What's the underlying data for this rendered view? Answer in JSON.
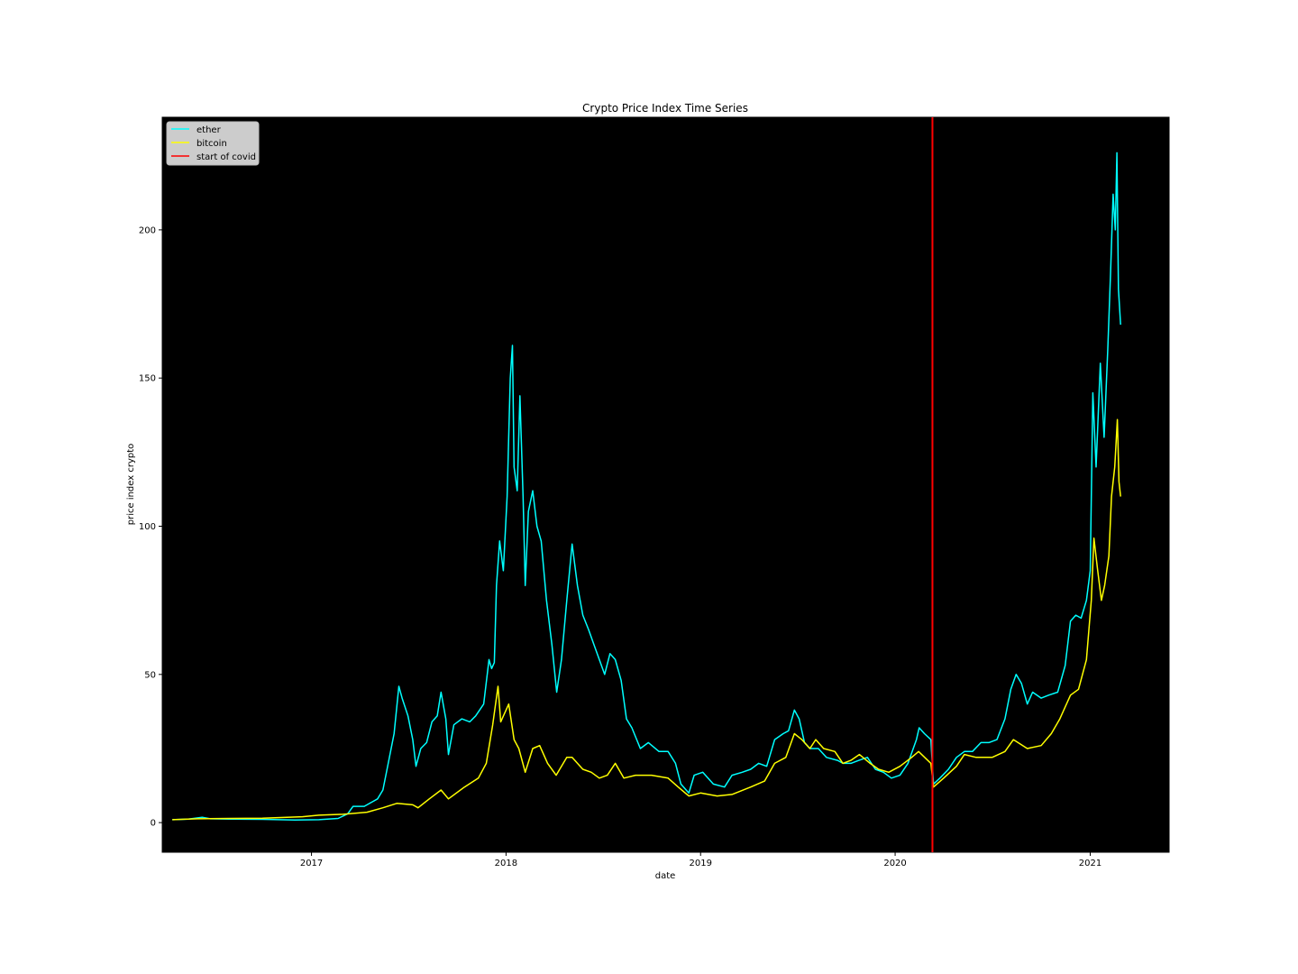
{
  "chart_data": {
    "type": "line",
    "title": "Crypto Price Index Time Series",
    "xlabel": "date",
    "ylabel": "price index crypto",
    "xlim": [
      "2016-03-27",
      "2021-05-29"
    ],
    "ylim": [
      -10,
      238
    ],
    "x_ticks": [
      {
        "date": "2017-01-01",
        "label": "2017"
      },
      {
        "date": "2018-01-01",
        "label": "2018"
      },
      {
        "date": "2019-01-01",
        "label": "2019"
      },
      {
        "date": "2020-01-01",
        "label": "2020"
      },
      {
        "date": "2021-01-01",
        "label": "2021"
      }
    ],
    "y_ticks": [
      0,
      50,
      100,
      150,
      200
    ],
    "background_color": "#000000",
    "legend_placement": "top-left",
    "series": [
      {
        "name": "ether",
        "color": "#00ffff",
        "points": [
          [
            "2016-04-15",
            1.0
          ],
          [
            "2016-05-15",
            1.2
          ],
          [
            "2016-06-10",
            1.8
          ],
          [
            "2016-06-25",
            1.3
          ],
          [
            "2016-08-01",
            1.2
          ],
          [
            "2016-10-01",
            1.1
          ],
          [
            "2016-12-01",
            0.9
          ],
          [
            "2017-01-15",
            1.0
          ],
          [
            "2017-02-20",
            1.4
          ],
          [
            "2017-03-10",
            3.0
          ],
          [
            "2017-03-20",
            5.5
          ],
          [
            "2017-04-10",
            5.5
          ],
          [
            "2017-04-25",
            7.0
          ],
          [
            "2017-05-05",
            8.0
          ],
          [
            "2017-05-15",
            11.0
          ],
          [
            "2017-05-25",
            20.0
          ],
          [
            "2017-06-05",
            30.0
          ],
          [
            "2017-06-14",
            46.0
          ],
          [
            "2017-06-20",
            42.0
          ],
          [
            "2017-07-01",
            36.0
          ],
          [
            "2017-07-10",
            28.0
          ],
          [
            "2017-07-16",
            19.0
          ],
          [
            "2017-07-25",
            25.0
          ],
          [
            "2017-08-05",
            27.0
          ],
          [
            "2017-08-15",
            34.0
          ],
          [
            "2017-08-25",
            36.0
          ],
          [
            "2017-09-01",
            44.0
          ],
          [
            "2017-09-10",
            35.0
          ],
          [
            "2017-09-15",
            23.0
          ],
          [
            "2017-09-25",
            33.0
          ],
          [
            "2017-10-10",
            35.0
          ],
          [
            "2017-10-25",
            34.0
          ],
          [
            "2017-11-05",
            36.0
          ],
          [
            "2017-11-20",
            40.0
          ],
          [
            "2017-11-30",
            55.0
          ],
          [
            "2017-12-05",
            52.0
          ],
          [
            "2017-12-10",
            54.0
          ],
          [
            "2017-12-14",
            80.0
          ],
          [
            "2017-12-20",
            95.0
          ],
          [
            "2017-12-27",
            85.0
          ],
          [
            "2018-01-03",
            110.0
          ],
          [
            "2018-01-09",
            150.0
          ],
          [
            "2018-01-13",
            161.0
          ],
          [
            "2018-01-16",
            120.0
          ],
          [
            "2018-01-22",
            112.0
          ],
          [
            "2018-01-27",
            144.0
          ],
          [
            "2018-02-02",
            110.0
          ],
          [
            "2018-02-06",
            80.0
          ],
          [
            "2018-02-12",
            105.0
          ],
          [
            "2018-02-20",
            112.0
          ],
          [
            "2018-02-28",
            100.0
          ],
          [
            "2018-03-08",
            95.0
          ],
          [
            "2018-03-18",
            75.0
          ],
          [
            "2018-03-28",
            60.0
          ],
          [
            "2018-04-06",
            44.0
          ],
          [
            "2018-04-15",
            55.0
          ],
          [
            "2018-04-25",
            75.0
          ],
          [
            "2018-05-05",
            94.0
          ],
          [
            "2018-05-15",
            80.0
          ],
          [
            "2018-05-25",
            70.0
          ],
          [
            "2018-06-05",
            65.0
          ],
          [
            "2018-06-15",
            60.0
          ],
          [
            "2018-06-25",
            55.0
          ],
          [
            "2018-07-05",
            50.0
          ],
          [
            "2018-07-15",
            57.0
          ],
          [
            "2018-07-25",
            55.0
          ],
          [
            "2018-08-05",
            48.0
          ],
          [
            "2018-08-15",
            35.0
          ],
          [
            "2018-08-25",
            32.0
          ],
          [
            "2018-09-10",
            25.0
          ],
          [
            "2018-09-25",
            27.0
          ],
          [
            "2018-10-15",
            24.0
          ],
          [
            "2018-11-01",
            24.0
          ],
          [
            "2018-11-15",
            20.0
          ],
          [
            "2018-11-25",
            13.0
          ],
          [
            "2018-12-10",
            10.0
          ],
          [
            "2018-12-20",
            16.0
          ],
          [
            "2019-01-05",
            17.0
          ],
          [
            "2019-01-25",
            13.0
          ],
          [
            "2019-02-15",
            12.0
          ],
          [
            "2019-03-01",
            16.0
          ],
          [
            "2019-03-20",
            17.0
          ],
          [
            "2019-04-05",
            18.0
          ],
          [
            "2019-04-20",
            20.0
          ],
          [
            "2019-05-05",
            19.0
          ],
          [
            "2019-05-20",
            28.0
          ],
          [
            "2019-06-05",
            30.0
          ],
          [
            "2019-06-15",
            31.0
          ],
          [
            "2019-06-26",
            38.0
          ],
          [
            "2019-07-05",
            35.0
          ],
          [
            "2019-07-15",
            27.0
          ],
          [
            "2019-07-25",
            25.0
          ],
          [
            "2019-08-10",
            25.0
          ],
          [
            "2019-08-25",
            22.0
          ],
          [
            "2019-09-15",
            21.0
          ],
          [
            "2019-09-25",
            20.0
          ],
          [
            "2019-10-10",
            20.0
          ],
          [
            "2019-10-25",
            21.0
          ],
          [
            "2019-11-10",
            22.0
          ],
          [
            "2019-11-25",
            18.0
          ],
          [
            "2019-12-10",
            17.0
          ],
          [
            "2019-12-25",
            15.0
          ],
          [
            "2020-01-10",
            16.0
          ],
          [
            "2020-01-25",
            20.0
          ],
          [
            "2020-02-10",
            28.0
          ],
          [
            "2020-02-15",
            32.0
          ],
          [
            "2020-02-25",
            30.0
          ],
          [
            "2020-03-08",
            28.0
          ],
          [
            "2020-03-13",
            13.0
          ],
          [
            "2020-03-25",
            15.0
          ],
          [
            "2020-04-10",
            18.0
          ],
          [
            "2020-04-25",
            22.0
          ],
          [
            "2020-05-10",
            24.0
          ],
          [
            "2020-05-25",
            24.0
          ],
          [
            "2020-06-10",
            27.0
          ],
          [
            "2020-06-25",
            27.0
          ],
          [
            "2020-07-10",
            28.0
          ],
          [
            "2020-07-25",
            35.0
          ],
          [
            "2020-08-05",
            45.0
          ],
          [
            "2020-08-15",
            50.0
          ],
          [
            "2020-08-25",
            47.0
          ],
          [
            "2020-09-05",
            40.0
          ],
          [
            "2020-09-15",
            44.0
          ],
          [
            "2020-10-01",
            42.0
          ],
          [
            "2020-10-15",
            43.0
          ],
          [
            "2020-11-01",
            44.0
          ],
          [
            "2020-11-15",
            53.0
          ],
          [
            "2020-11-25",
            68.0
          ],
          [
            "2020-12-05",
            70.0
          ],
          [
            "2020-12-15",
            69.0
          ],
          [
            "2020-12-25",
            75.0
          ],
          [
            "2021-01-01",
            85.0
          ],
          [
            "2021-01-06",
            145.0
          ],
          [
            "2021-01-12",
            120.0
          ],
          [
            "2021-01-20",
            155.0
          ],
          [
            "2021-01-27",
            130.0
          ],
          [
            "2021-02-03",
            160.0
          ],
          [
            "2021-02-08",
            185.0
          ],
          [
            "2021-02-13",
            212.0
          ],
          [
            "2021-02-17",
            200.0
          ],
          [
            "2021-02-20",
            226.0
          ],
          [
            "2021-02-23",
            180.0
          ],
          [
            "2021-02-27",
            168.0
          ]
        ]
      },
      {
        "name": "bitcoin",
        "color": "#ffff00",
        "points": [
          [
            "2016-04-15",
            1.0
          ],
          [
            "2016-06-01",
            1.3
          ],
          [
            "2016-08-01",
            1.4
          ],
          [
            "2016-10-01",
            1.5
          ],
          [
            "2016-12-15",
            2.0
          ],
          [
            "2017-01-15",
            2.5
          ],
          [
            "2017-03-01",
            2.8
          ],
          [
            "2017-04-15",
            3.5
          ],
          [
            "2017-05-15",
            5.0
          ],
          [
            "2017-06-10",
            6.5
          ],
          [
            "2017-07-10",
            6.0
          ],
          [
            "2017-07-20",
            5.0
          ],
          [
            "2017-08-10",
            8.0
          ],
          [
            "2017-09-01",
            11.0
          ],
          [
            "2017-09-15",
            8.0
          ],
          [
            "2017-10-15",
            12.0
          ],
          [
            "2017-11-10",
            15.0
          ],
          [
            "2017-11-25",
            20.0
          ],
          [
            "2017-12-07",
            33.0
          ],
          [
            "2017-12-17",
            46.0
          ],
          [
            "2017-12-22",
            34.0
          ],
          [
            "2018-01-06",
            40.0
          ],
          [
            "2018-01-16",
            28.0
          ],
          [
            "2018-01-25",
            25.0
          ],
          [
            "2018-02-06",
            17.0
          ],
          [
            "2018-02-20",
            25.0
          ],
          [
            "2018-03-05",
            26.0
          ],
          [
            "2018-03-20",
            20.0
          ],
          [
            "2018-04-05",
            16.0
          ],
          [
            "2018-04-25",
            22.0
          ],
          [
            "2018-05-05",
            22.0
          ],
          [
            "2018-05-25",
            18.0
          ],
          [
            "2018-06-10",
            17.0
          ],
          [
            "2018-06-25",
            15.0
          ],
          [
            "2018-07-10",
            16.0
          ],
          [
            "2018-07-25",
            20.0
          ],
          [
            "2018-08-10",
            15.0
          ],
          [
            "2018-09-01",
            16.0
          ],
          [
            "2018-10-01",
            16.0
          ],
          [
            "2018-11-01",
            15.0
          ],
          [
            "2018-11-20",
            12.0
          ],
          [
            "2018-12-10",
            9.0
          ],
          [
            "2019-01-01",
            10.0
          ],
          [
            "2019-02-01",
            9.0
          ],
          [
            "2019-03-01",
            9.5
          ],
          [
            "2019-04-05",
            12.0
          ],
          [
            "2019-05-01",
            14.0
          ],
          [
            "2019-05-20",
            20.0
          ],
          [
            "2019-06-10",
            22.0
          ],
          [
            "2019-06-26",
            30.0
          ],
          [
            "2019-07-10",
            28.0
          ],
          [
            "2019-07-25",
            25.0
          ],
          [
            "2019-08-05",
            28.0
          ],
          [
            "2019-08-20",
            25.0
          ],
          [
            "2019-09-10",
            24.0
          ],
          [
            "2019-09-25",
            20.0
          ],
          [
            "2019-10-10",
            21.0
          ],
          [
            "2019-10-26",
            23.0
          ],
          [
            "2019-11-15",
            20.0
          ],
          [
            "2019-12-01",
            18.0
          ],
          [
            "2019-12-20",
            17.0
          ],
          [
            "2020-01-10",
            19.0
          ],
          [
            "2020-02-01",
            22.0
          ],
          [
            "2020-02-14",
            24.0
          ],
          [
            "2020-03-08",
            20.0
          ],
          [
            "2020-03-13",
            12.0
          ],
          [
            "2020-04-01",
            15.0
          ],
          [
            "2020-04-25",
            19.0
          ],
          [
            "2020-05-10",
            23.0
          ],
          [
            "2020-06-01",
            22.0
          ],
          [
            "2020-07-01",
            22.0
          ],
          [
            "2020-07-25",
            24.0
          ],
          [
            "2020-08-10",
            28.0
          ],
          [
            "2020-09-05",
            25.0
          ],
          [
            "2020-10-01",
            26.0
          ],
          [
            "2020-10-20",
            30.0
          ],
          [
            "2020-11-05",
            35.0
          ],
          [
            "2020-11-25",
            43.0
          ],
          [
            "2020-12-10",
            45.0
          ],
          [
            "2020-12-25",
            55.0
          ],
          [
            "2021-01-03",
            75.0
          ],
          [
            "2021-01-08",
            96.0
          ],
          [
            "2021-01-15",
            85.0
          ],
          [
            "2021-01-22",
            75.0
          ],
          [
            "2021-01-28",
            80.0
          ],
          [
            "2021-02-05",
            90.0
          ],
          [
            "2021-02-10",
            110.0
          ],
          [
            "2021-02-16",
            120.0
          ],
          [
            "2021-02-21",
            136.0
          ],
          [
            "2021-02-24",
            115.0
          ],
          [
            "2021-02-27",
            110.0
          ]
        ]
      }
    ],
    "vlines": [
      {
        "name": "start of covid",
        "date": "2020-03-11",
        "color": "#ff0000"
      }
    ]
  }
}
